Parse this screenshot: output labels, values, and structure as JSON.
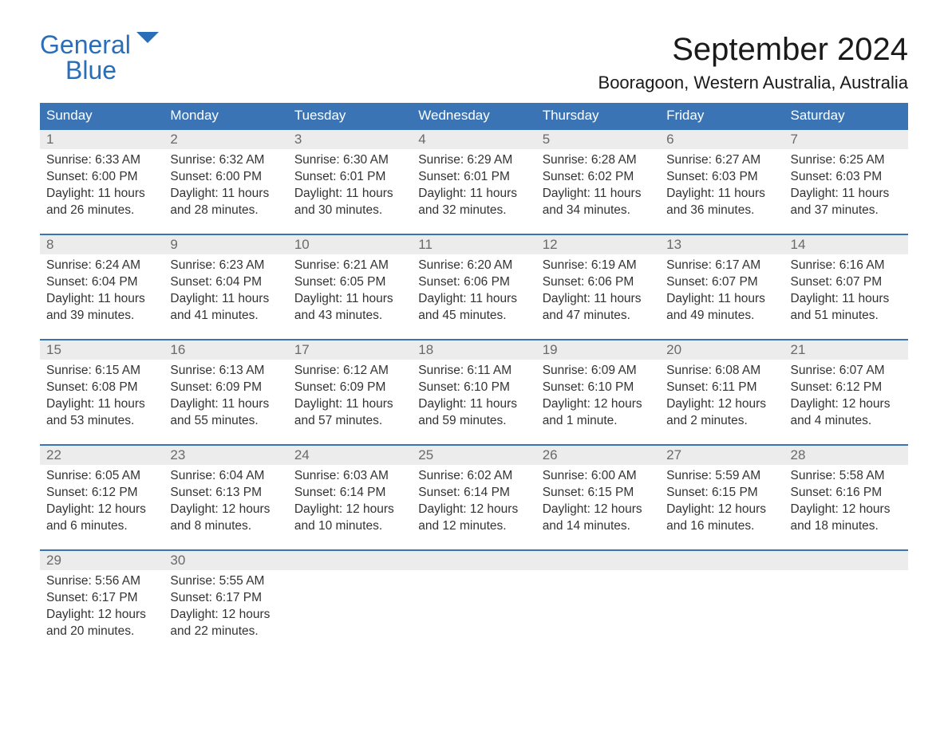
{
  "logo": {
    "line1": "General",
    "line2": "Blue"
  },
  "title": "September 2024",
  "location": "Booragoon, Western Australia, Australia",
  "colors": {
    "header_bg": "#3b74b5",
    "header_text": "#ffffff",
    "daynum_bg": "#ececec",
    "daynum_text": "#6a6a6a",
    "body_text": "#333333",
    "logo_color": "#2a6db8",
    "week_border": "#3b74b5"
  },
  "days_of_week": [
    "Sunday",
    "Monday",
    "Tuesday",
    "Wednesday",
    "Thursday",
    "Friday",
    "Saturday"
  ],
  "weeks": [
    [
      {
        "n": "1",
        "sr": "Sunrise: 6:33 AM",
        "ss": "Sunset: 6:00 PM",
        "dl1": "Daylight: 11 hours",
        "dl2": "and 26 minutes."
      },
      {
        "n": "2",
        "sr": "Sunrise: 6:32 AM",
        "ss": "Sunset: 6:00 PM",
        "dl1": "Daylight: 11 hours",
        "dl2": "and 28 minutes."
      },
      {
        "n": "3",
        "sr": "Sunrise: 6:30 AM",
        "ss": "Sunset: 6:01 PM",
        "dl1": "Daylight: 11 hours",
        "dl2": "and 30 minutes."
      },
      {
        "n": "4",
        "sr": "Sunrise: 6:29 AM",
        "ss": "Sunset: 6:01 PM",
        "dl1": "Daylight: 11 hours",
        "dl2": "and 32 minutes."
      },
      {
        "n": "5",
        "sr": "Sunrise: 6:28 AM",
        "ss": "Sunset: 6:02 PM",
        "dl1": "Daylight: 11 hours",
        "dl2": "and 34 minutes."
      },
      {
        "n": "6",
        "sr": "Sunrise: 6:27 AM",
        "ss": "Sunset: 6:03 PM",
        "dl1": "Daylight: 11 hours",
        "dl2": "and 36 minutes."
      },
      {
        "n": "7",
        "sr": "Sunrise: 6:25 AM",
        "ss": "Sunset: 6:03 PM",
        "dl1": "Daylight: 11 hours",
        "dl2": "and 37 minutes."
      }
    ],
    [
      {
        "n": "8",
        "sr": "Sunrise: 6:24 AM",
        "ss": "Sunset: 6:04 PM",
        "dl1": "Daylight: 11 hours",
        "dl2": "and 39 minutes."
      },
      {
        "n": "9",
        "sr": "Sunrise: 6:23 AM",
        "ss": "Sunset: 6:04 PM",
        "dl1": "Daylight: 11 hours",
        "dl2": "and 41 minutes."
      },
      {
        "n": "10",
        "sr": "Sunrise: 6:21 AM",
        "ss": "Sunset: 6:05 PM",
        "dl1": "Daylight: 11 hours",
        "dl2": "and 43 minutes."
      },
      {
        "n": "11",
        "sr": "Sunrise: 6:20 AM",
        "ss": "Sunset: 6:06 PM",
        "dl1": "Daylight: 11 hours",
        "dl2": "and 45 minutes."
      },
      {
        "n": "12",
        "sr": "Sunrise: 6:19 AM",
        "ss": "Sunset: 6:06 PM",
        "dl1": "Daylight: 11 hours",
        "dl2": "and 47 minutes."
      },
      {
        "n": "13",
        "sr": "Sunrise: 6:17 AM",
        "ss": "Sunset: 6:07 PM",
        "dl1": "Daylight: 11 hours",
        "dl2": "and 49 minutes."
      },
      {
        "n": "14",
        "sr": "Sunrise: 6:16 AM",
        "ss": "Sunset: 6:07 PM",
        "dl1": "Daylight: 11 hours",
        "dl2": "and 51 minutes."
      }
    ],
    [
      {
        "n": "15",
        "sr": "Sunrise: 6:15 AM",
        "ss": "Sunset: 6:08 PM",
        "dl1": "Daylight: 11 hours",
        "dl2": "and 53 minutes."
      },
      {
        "n": "16",
        "sr": "Sunrise: 6:13 AM",
        "ss": "Sunset: 6:09 PM",
        "dl1": "Daylight: 11 hours",
        "dl2": "and 55 minutes."
      },
      {
        "n": "17",
        "sr": "Sunrise: 6:12 AM",
        "ss": "Sunset: 6:09 PM",
        "dl1": "Daylight: 11 hours",
        "dl2": "and 57 minutes."
      },
      {
        "n": "18",
        "sr": "Sunrise: 6:11 AM",
        "ss": "Sunset: 6:10 PM",
        "dl1": "Daylight: 11 hours",
        "dl2": "and 59 minutes."
      },
      {
        "n": "19",
        "sr": "Sunrise: 6:09 AM",
        "ss": "Sunset: 6:10 PM",
        "dl1": "Daylight: 12 hours",
        "dl2": "and 1 minute."
      },
      {
        "n": "20",
        "sr": "Sunrise: 6:08 AM",
        "ss": "Sunset: 6:11 PM",
        "dl1": "Daylight: 12 hours",
        "dl2": "and 2 minutes."
      },
      {
        "n": "21",
        "sr": "Sunrise: 6:07 AM",
        "ss": "Sunset: 6:12 PM",
        "dl1": "Daylight: 12 hours",
        "dl2": "and 4 minutes."
      }
    ],
    [
      {
        "n": "22",
        "sr": "Sunrise: 6:05 AM",
        "ss": "Sunset: 6:12 PM",
        "dl1": "Daylight: 12 hours",
        "dl2": "and 6 minutes."
      },
      {
        "n": "23",
        "sr": "Sunrise: 6:04 AM",
        "ss": "Sunset: 6:13 PM",
        "dl1": "Daylight: 12 hours",
        "dl2": "and 8 minutes."
      },
      {
        "n": "24",
        "sr": "Sunrise: 6:03 AM",
        "ss": "Sunset: 6:14 PM",
        "dl1": "Daylight: 12 hours",
        "dl2": "and 10 minutes."
      },
      {
        "n": "25",
        "sr": "Sunrise: 6:02 AM",
        "ss": "Sunset: 6:14 PM",
        "dl1": "Daylight: 12 hours",
        "dl2": "and 12 minutes."
      },
      {
        "n": "26",
        "sr": "Sunrise: 6:00 AM",
        "ss": "Sunset: 6:15 PM",
        "dl1": "Daylight: 12 hours",
        "dl2": "and 14 minutes."
      },
      {
        "n": "27",
        "sr": "Sunrise: 5:59 AM",
        "ss": "Sunset: 6:15 PM",
        "dl1": "Daylight: 12 hours",
        "dl2": "and 16 minutes."
      },
      {
        "n": "28",
        "sr": "Sunrise: 5:58 AM",
        "ss": "Sunset: 6:16 PM",
        "dl1": "Daylight: 12 hours",
        "dl2": "and 18 minutes."
      }
    ],
    [
      {
        "n": "29",
        "sr": "Sunrise: 5:56 AM",
        "ss": "Sunset: 6:17 PM",
        "dl1": "Daylight: 12 hours",
        "dl2": "and 20 minutes."
      },
      {
        "n": "30",
        "sr": "Sunrise: 5:55 AM",
        "ss": "Sunset: 6:17 PM",
        "dl1": "Daylight: 12 hours",
        "dl2": "and 22 minutes."
      },
      {
        "empty": true
      },
      {
        "empty": true
      },
      {
        "empty": true
      },
      {
        "empty": true
      },
      {
        "empty": true
      }
    ]
  ]
}
